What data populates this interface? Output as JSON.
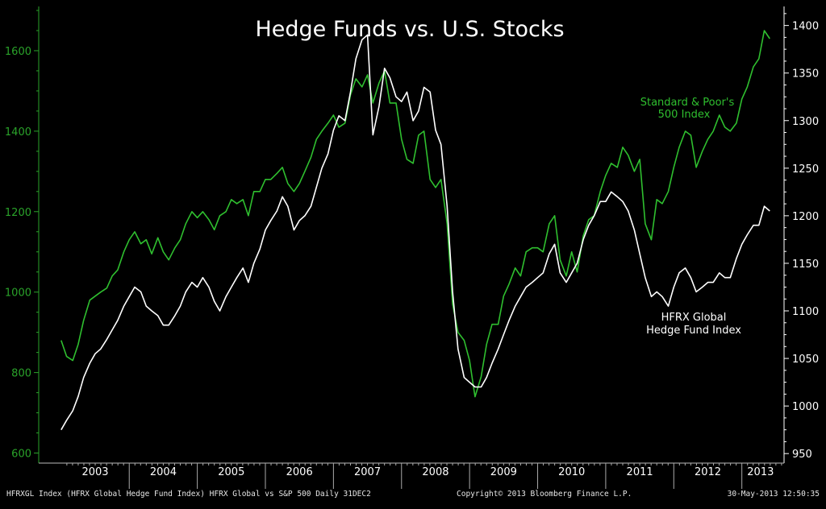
{
  "chart_data": {
    "type": "line",
    "title": "Hedge Funds vs. U.S. Stocks",
    "x_categories": [
      "2003",
      "2004",
      "2005",
      "2006",
      "2007",
      "2008",
      "2009",
      "2010",
      "2011",
      "2012",
      "2013"
    ],
    "left_axis": {
      "ticks": [
        600,
        800,
        1000,
        1200,
        1400,
        1600
      ],
      "range": [
        575,
        1710
      ],
      "color": "#2aa32a"
    },
    "right_axis": {
      "ticks": [
        950,
        1000,
        1050,
        1100,
        1150,
        1200,
        1250,
        1300,
        1350,
        1400
      ],
      "range": [
        940,
        1420
      ],
      "color": "#ffffff"
    },
    "grid": false,
    "series": [
      {
        "name": "Standard & Poor's 500 Index",
        "axis": "left",
        "color": "#2fbf2f",
        "points": [
          [
            2003.0,
            880
          ],
          [
            2003.08,
            840
          ],
          [
            2003.17,
            830
          ],
          [
            2003.25,
            870
          ],
          [
            2003.33,
            930
          ],
          [
            2003.42,
            980
          ],
          [
            2003.5,
            990
          ],
          [
            2003.58,
            1000
          ],
          [
            2003.67,
            1010
          ],
          [
            2003.75,
            1040
          ],
          [
            2003.83,
            1055
          ],
          [
            2003.92,
            1100
          ],
          [
            2004.0,
            1130
          ],
          [
            2004.08,
            1150
          ],
          [
            2004.17,
            1120
          ],
          [
            2004.25,
            1130
          ],
          [
            2004.33,
            1095
          ],
          [
            2004.42,
            1135
          ],
          [
            2004.5,
            1100
          ],
          [
            2004.58,
            1080
          ],
          [
            2004.67,
            1110
          ],
          [
            2004.75,
            1130
          ],
          [
            2004.83,
            1170
          ],
          [
            2004.92,
            1200
          ],
          [
            2005.0,
            1185
          ],
          [
            2005.08,
            1200
          ],
          [
            2005.17,
            1180
          ],
          [
            2005.25,
            1155
          ],
          [
            2005.33,
            1190
          ],
          [
            2005.42,
            1200
          ],
          [
            2005.5,
            1230
          ],
          [
            2005.58,
            1220
          ],
          [
            2005.67,
            1230
          ],
          [
            2005.75,
            1190
          ],
          [
            2005.83,
            1250
          ],
          [
            2005.92,
            1250
          ],
          [
            2006.0,
            1280
          ],
          [
            2006.08,
            1280
          ],
          [
            2006.17,
            1295
          ],
          [
            2006.25,
            1310
          ],
          [
            2006.33,
            1270
          ],
          [
            2006.42,
            1250
          ],
          [
            2006.5,
            1270
          ],
          [
            2006.58,
            1300
          ],
          [
            2006.67,
            1335
          ],
          [
            2006.75,
            1380
          ],
          [
            2006.83,
            1400
          ],
          [
            2006.92,
            1420
          ],
          [
            2007.0,
            1440
          ],
          [
            2007.08,
            1410
          ],
          [
            2007.17,
            1420
          ],
          [
            2007.25,
            1490
          ],
          [
            2007.33,
            1530
          ],
          [
            2007.42,
            1510
          ],
          [
            2007.5,
            1540
          ],
          [
            2007.58,
            1470
          ],
          [
            2007.67,
            1520
          ],
          [
            2007.75,
            1550
          ],
          [
            2007.83,
            1470
          ],
          [
            2007.92,
            1470
          ],
          [
            2008.0,
            1380
          ],
          [
            2008.08,
            1330
          ],
          [
            2008.17,
            1320
          ],
          [
            2008.25,
            1390
          ],
          [
            2008.33,
            1400
          ],
          [
            2008.42,
            1280
          ],
          [
            2008.5,
            1260
          ],
          [
            2008.58,
            1280
          ],
          [
            2008.67,
            1170
          ],
          [
            2008.75,
            970
          ],
          [
            2008.83,
            900
          ],
          [
            2008.92,
            880
          ],
          [
            2009.0,
            830
          ],
          [
            2009.08,
            740
          ],
          [
            2009.17,
            790
          ],
          [
            2009.25,
            870
          ],
          [
            2009.33,
            920
          ],
          [
            2009.42,
            920
          ],
          [
            2009.5,
            990
          ],
          [
            2009.58,
            1020
          ],
          [
            2009.67,
            1060
          ],
          [
            2009.75,
            1040
          ],
          [
            2009.83,
            1100
          ],
          [
            2009.92,
            1110
          ],
          [
            2010.0,
            1110
          ],
          [
            2010.08,
            1100
          ],
          [
            2010.17,
            1170
          ],
          [
            2010.25,
            1190
          ],
          [
            2010.33,
            1080
          ],
          [
            2010.42,
            1040
          ],
          [
            2010.5,
            1100
          ],
          [
            2010.58,
            1050
          ],
          [
            2010.67,
            1140
          ],
          [
            2010.75,
            1180
          ],
          [
            2010.83,
            1190
          ],
          [
            2010.92,
            1250
          ],
          [
            2011.0,
            1290
          ],
          [
            2011.08,
            1320
          ],
          [
            2011.17,
            1310
          ],
          [
            2011.25,
            1360
          ],
          [
            2011.33,
            1340
          ],
          [
            2011.42,
            1300
          ],
          [
            2011.5,
            1330
          ],
          [
            2011.58,
            1170
          ],
          [
            2011.67,
            1130
          ],
          [
            2011.75,
            1230
          ],
          [
            2011.83,
            1220
          ],
          [
            2011.92,
            1250
          ],
          [
            2012.0,
            1310
          ],
          [
            2012.08,
            1360
          ],
          [
            2012.17,
            1400
          ],
          [
            2012.25,
            1390
          ],
          [
            2012.33,
            1310
          ],
          [
            2012.42,
            1350
          ],
          [
            2012.5,
            1380
          ],
          [
            2012.58,
            1400
          ],
          [
            2012.67,
            1440
          ],
          [
            2012.75,
            1410
          ],
          [
            2012.83,
            1400
          ],
          [
            2012.92,
            1420
          ],
          [
            2013.0,
            1480
          ],
          [
            2013.08,
            1510
          ],
          [
            2013.17,
            1560
          ],
          [
            2013.25,
            1580
          ],
          [
            2013.33,
            1650
          ],
          [
            2013.41,
            1630
          ]
        ]
      },
      {
        "name": "HFRX Global Hedge Fund Index",
        "axis": "right",
        "color": "#ffffff",
        "points": [
          [
            2003.0,
            975
          ],
          [
            2003.08,
            985
          ],
          [
            2003.17,
            995
          ],
          [
            2003.25,
            1010
          ],
          [
            2003.33,
            1030
          ],
          [
            2003.42,
            1045
          ],
          [
            2003.5,
            1055
          ],
          [
            2003.58,
            1060
          ],
          [
            2003.67,
            1070
          ],
          [
            2003.75,
            1080
          ],
          [
            2003.83,
            1090
          ],
          [
            2003.92,
            1105
          ],
          [
            2004.0,
            1115
          ],
          [
            2004.08,
            1125
          ],
          [
            2004.17,
            1120
          ],
          [
            2004.25,
            1105
          ],
          [
            2004.33,
            1100
          ],
          [
            2004.42,
            1095
          ],
          [
            2004.5,
            1085
          ],
          [
            2004.58,
            1085
          ],
          [
            2004.67,
            1095
          ],
          [
            2004.75,
            1105
          ],
          [
            2004.83,
            1120
          ],
          [
            2004.92,
            1130
          ],
          [
            2005.0,
            1125
          ],
          [
            2005.08,
            1135
          ],
          [
            2005.17,
            1125
          ],
          [
            2005.25,
            1110
          ],
          [
            2005.33,
            1100
          ],
          [
            2005.42,
            1115
          ],
          [
            2005.5,
            1125
          ],
          [
            2005.58,
            1135
          ],
          [
            2005.67,
            1145
          ],
          [
            2005.75,
            1130
          ],
          [
            2005.83,
            1150
          ],
          [
            2005.92,
            1165
          ],
          [
            2006.0,
            1185
          ],
          [
            2006.08,
            1195
          ],
          [
            2006.17,
            1205
          ],
          [
            2006.25,
            1220
          ],
          [
            2006.33,
            1210
          ],
          [
            2006.42,
            1185
          ],
          [
            2006.5,
            1195
          ],
          [
            2006.58,
            1200
          ],
          [
            2006.67,
            1210
          ],
          [
            2006.75,
            1230
          ],
          [
            2006.83,
            1250
          ],
          [
            2006.92,
            1265
          ],
          [
            2007.0,
            1290
          ],
          [
            2007.08,
            1305
          ],
          [
            2007.17,
            1300
          ],
          [
            2007.25,
            1330
          ],
          [
            2007.33,
            1365
          ],
          [
            2007.42,
            1385
          ],
          [
            2007.5,
            1390
          ],
          [
            2007.58,
            1285
          ],
          [
            2007.67,
            1315
          ],
          [
            2007.75,
            1355
          ],
          [
            2007.83,
            1345
          ],
          [
            2007.92,
            1325
          ],
          [
            2008.0,
            1320
          ],
          [
            2008.08,
            1330
          ],
          [
            2008.17,
            1300
          ],
          [
            2008.25,
            1310
          ],
          [
            2008.33,
            1335
          ],
          [
            2008.42,
            1330
          ],
          [
            2008.5,
            1290
          ],
          [
            2008.58,
            1275
          ],
          [
            2008.67,
            1210
          ],
          [
            2008.75,
            1120
          ],
          [
            2008.83,
            1060
          ],
          [
            2008.92,
            1030
          ],
          [
            2009.0,
            1025
          ],
          [
            2009.08,
            1020
          ],
          [
            2009.17,
            1020
          ],
          [
            2009.25,
            1030
          ],
          [
            2009.33,
            1045
          ],
          [
            2009.42,
            1060
          ],
          [
            2009.5,
            1075
          ],
          [
            2009.58,
            1090
          ],
          [
            2009.67,
            1105
          ],
          [
            2009.75,
            1115
          ],
          [
            2009.83,
            1125
          ],
          [
            2009.92,
            1130
          ],
          [
            2010.0,
            1135
          ],
          [
            2010.08,
            1140
          ],
          [
            2010.17,
            1160
          ],
          [
            2010.25,
            1170
          ],
          [
            2010.33,
            1140
          ],
          [
            2010.42,
            1130
          ],
          [
            2010.5,
            1140
          ],
          [
            2010.58,
            1150
          ],
          [
            2010.67,
            1175
          ],
          [
            2010.75,
            1190
          ],
          [
            2010.83,
            1200
          ],
          [
            2010.92,
            1215
          ],
          [
            2011.0,
            1215
          ],
          [
            2011.08,
            1225
          ],
          [
            2011.17,
            1220
          ],
          [
            2011.25,
            1215
          ],
          [
            2011.33,
            1205
          ],
          [
            2011.42,
            1185
          ],
          [
            2011.5,
            1160
          ],
          [
            2011.58,
            1135
          ],
          [
            2011.67,
            1115
          ],
          [
            2011.75,
            1120
          ],
          [
            2011.83,
            1115
          ],
          [
            2011.92,
            1105
          ],
          [
            2012.0,
            1125
          ],
          [
            2012.08,
            1140
          ],
          [
            2012.17,
            1145
          ],
          [
            2012.25,
            1135
          ],
          [
            2012.33,
            1120
          ],
          [
            2012.42,
            1125
          ],
          [
            2012.5,
            1130
          ],
          [
            2012.58,
            1130
          ],
          [
            2012.67,
            1140
          ],
          [
            2012.75,
            1135
          ],
          [
            2012.83,
            1135
          ],
          [
            2012.92,
            1155
          ],
          [
            2013.0,
            1170
          ],
          [
            2013.08,
            1180
          ],
          [
            2013.17,
            1190
          ],
          [
            2013.25,
            1190
          ],
          [
            2013.33,
            1210
          ],
          [
            2013.41,
            1205
          ]
        ]
      }
    ],
    "annotations": {
      "sp500": [
        "Standard & Poor's",
        "500 Index"
      ],
      "hfrx": [
        "HFRX Global",
        "Hedge Fund Index"
      ]
    }
  },
  "footer": {
    "left": "HFRXGL Index (HFRX Global Hedge Fund Index) HFRX Global vs S&P 500  Daily 31DEC2",
    "center": "Copyright© 2013 Bloomberg Finance L.P.",
    "right": "30-May-2013 12:50:35"
  }
}
